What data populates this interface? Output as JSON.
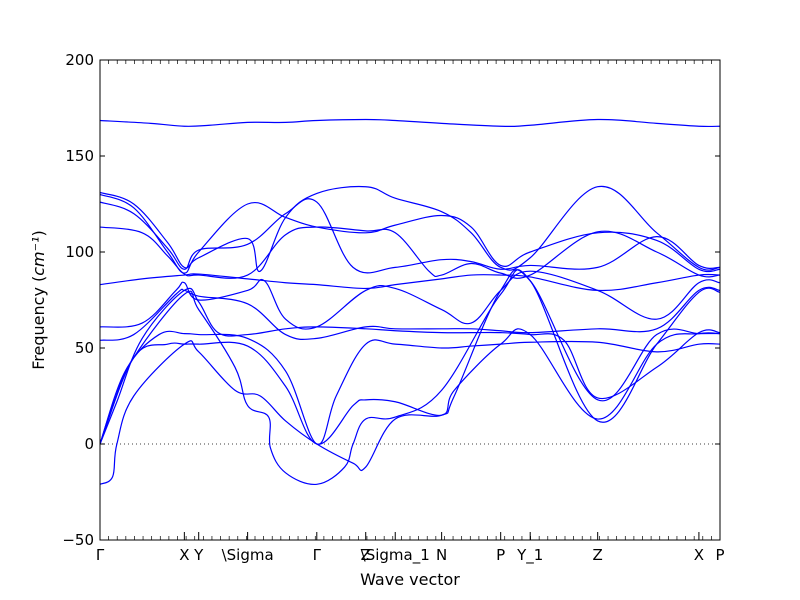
{
  "chart_data": {
    "type": "line",
    "title": "",
    "xlabel": "Wave vector",
    "ylabel_prefix": "Frequency (",
    "ylabel_unit_html": "cm⁻¹",
    "ylabel_suffix": ")",
    "ylim": [
      -50,
      200
    ],
    "xlim": [
      0,
      7.35
    ],
    "yticks": [
      -50,
      0,
      50,
      100,
      150,
      200
    ],
    "ytick_labels": [
      "−50",
      "0",
      "50",
      "100",
      "150",
      "200"
    ],
    "xticks": [
      {
        "x": 0.0,
        "label": "Γ"
      },
      {
        "x": 1.0,
        "label": "X"
      },
      {
        "x": 1.17,
        "label": "Y"
      },
      {
        "x": 1.75,
        "label": "\\Sigma"
      },
      {
        "x": 2.57,
        "label": "Γ"
      },
      {
        "x": 3.15,
        "label": "Z"
      },
      {
        "x": 3.5,
        "label": "\\Sigma_1"
      },
      {
        "x": 4.05,
        "label": "N"
      },
      {
        "x": 4.75,
        "label": "P"
      },
      {
        "x": 5.1,
        "label": "Y_1"
      },
      {
        "x": 5.9,
        "label": "Z"
      },
      {
        "x": 7.1,
        "label": "X"
      },
      {
        "x": 7.35,
        "label": "P"
      }
    ],
    "zero_line": {
      "y": 0,
      "style": "dotted"
    },
    "grid": false,
    "series": [
      {
        "points": [
          [
            0,
            168.5
          ],
          [
            0.6,
            167
          ],
          [
            1.0,
            165.5
          ],
          [
            1.3,
            166
          ],
          [
            1.75,
            167.5
          ],
          [
            2.2,
            167.5
          ],
          [
            2.57,
            168.5
          ],
          [
            3.15,
            169
          ],
          [
            3.5,
            168.5
          ],
          [
            4.05,
            167
          ],
          [
            4.75,
            165.5
          ],
          [
            5.1,
            166
          ],
          [
            5.9,
            169
          ],
          [
            6.6,
            167
          ],
          [
            7.1,
            165.5
          ],
          [
            7.35,
            165.5
          ]
        ]
      },
      {
        "points": [
          [
            0,
            131
          ],
          [
            0.4,
            125
          ],
          [
            0.8,
            105
          ],
          [
            1.0,
            92
          ],
          [
            1.17,
            97
          ],
          [
            1.75,
            107
          ],
          [
            1.9,
            90
          ],
          [
            2.2,
            118
          ],
          [
            2.57,
            130.5
          ],
          [
            3.15,
            134
          ],
          [
            3.5,
            128
          ],
          [
            4.05,
            121
          ],
          [
            4.4,
            110
          ],
          [
            4.75,
            92
          ],
          [
            5.1,
            97
          ],
          [
            5.9,
            134
          ],
          [
            6.6,
            110
          ],
          [
            7.1,
            92
          ],
          [
            7.35,
            92
          ]
        ]
      },
      {
        "points": [
          [
            0,
            130
          ],
          [
            0.4,
            123
          ],
          [
            0.8,
            100
          ],
          [
            1.0,
            89
          ],
          [
            1.17,
            100
          ],
          [
            1.75,
            125
          ],
          [
            2.2,
            118
          ],
          [
            2.57,
            113
          ],
          [
            3.15,
            110
          ],
          [
            3.5,
            114
          ],
          [
            4.05,
            119
          ],
          [
            4.4,
            113
          ],
          [
            4.75,
            93
          ],
          [
            5.1,
            100
          ],
          [
            5.9,
            110
          ],
          [
            6.6,
            106
          ],
          [
            7.1,
            91
          ],
          [
            7.35,
            91
          ]
        ]
      },
      {
        "points": [
          [
            0,
            126
          ],
          [
            0.4,
            120
          ],
          [
            0.8,
            102
          ],
          [
            1.0,
            91
          ],
          [
            1.17,
            101
          ],
          [
            1.75,
            104
          ],
          [
            2.2,
            120
          ],
          [
            2.57,
            126
          ],
          [
            3.0,
            92
          ],
          [
            3.5,
            92
          ],
          [
            4.05,
            96
          ],
          [
            4.4,
            95
          ],
          [
            4.75,
            91
          ],
          [
            5.1,
            93
          ],
          [
            5.9,
            92
          ],
          [
            6.6,
            108
          ],
          [
            7.1,
            93
          ],
          [
            7.35,
            92
          ]
        ]
      },
      {
        "points": [
          [
            0,
            113
          ],
          [
            0.5,
            110
          ],
          [
            0.8,
            98
          ],
          [
            1.0,
            88.5
          ],
          [
            1.17,
            88
          ],
          [
            1.75,
            88
          ],
          [
            2.2,
            109
          ],
          [
            2.57,
            113
          ],
          [
            3.15,
            111
          ],
          [
            3.5,
            110
          ],
          [
            3.9,
            90
          ],
          [
            4.05,
            88
          ],
          [
            4.4,
            94
          ],
          [
            4.75,
            89
          ],
          [
            5.1,
            88
          ],
          [
            5.9,
            110.5
          ],
          [
            6.6,
            100
          ],
          [
            7.1,
            88
          ],
          [
            7.35,
            88
          ]
        ]
      },
      {
        "points": [
          [
            0,
            83
          ],
          [
            0.5,
            86
          ],
          [
            1.0,
            88
          ],
          [
            1.17,
            88.5
          ],
          [
            1.75,
            86
          ],
          [
            2.2,
            84
          ],
          [
            2.57,
            83
          ],
          [
            3.15,
            81
          ],
          [
            3.5,
            83
          ],
          [
            4.05,
            86
          ],
          [
            4.4,
            88
          ],
          [
            4.75,
            88
          ],
          [
            5.1,
            87
          ],
          [
            5.9,
            80
          ],
          [
            6.6,
            84
          ],
          [
            7.1,
            88
          ],
          [
            7.35,
            88
          ]
        ]
      },
      {
        "points": [
          [
            0,
            61
          ],
          [
            0.5,
            63
          ],
          [
            0.9,
            80
          ],
          [
            1.0,
            84
          ],
          [
            1.17,
            75
          ],
          [
            1.75,
            80
          ],
          [
            1.95,
            85
          ],
          [
            2.2,
            65
          ],
          [
            2.57,
            61
          ],
          [
            3.15,
            80
          ],
          [
            3.5,
            81
          ],
          [
            4.05,
            70
          ],
          [
            4.4,
            63
          ],
          [
            4.75,
            80
          ],
          [
            5.1,
            90
          ],
          [
            5.9,
            80
          ],
          [
            6.6,
            65
          ],
          [
            7.1,
            84
          ],
          [
            7.35,
            84
          ]
        ]
      },
      {
        "points": [
          [
            0,
            54
          ],
          [
            0.4,
            57
          ],
          [
            0.9,
            78
          ],
          [
            1.0,
            80
          ],
          [
            1.17,
            77
          ],
          [
            1.75,
            73
          ],
          [
            2.2,
            57
          ],
          [
            2.57,
            55
          ],
          [
            3.15,
            61
          ],
          [
            3.5,
            60
          ],
          [
            4.05,
            60
          ],
          [
            4.4,
            60
          ],
          [
            4.75,
            59
          ],
          [
            5.1,
            58
          ],
          [
            5.9,
            60
          ],
          [
            6.6,
            60
          ],
          [
            7.1,
            80
          ],
          [
            7.35,
            80
          ]
        ]
      },
      {
        "points": [
          [
            0,
            0
          ],
          [
            0.2,
            22
          ],
          [
            0.5,
            55
          ],
          [
            1.0,
            80
          ],
          [
            1.17,
            74
          ],
          [
            1.4,
            58
          ],
          [
            1.75,
            57
          ],
          [
            2.2,
            60
          ],
          [
            2.57,
            61
          ],
          [
            3.15,
            60
          ],
          [
            3.5,
            59
          ],
          [
            4.05,
            58
          ],
          [
            4.4,
            58
          ],
          [
            4.75,
            58
          ],
          [
            5.1,
            57
          ],
          [
            5.5,
            54
          ],
          [
            5.9,
            24
          ],
          [
            6.6,
            40
          ],
          [
            7.1,
            58
          ],
          [
            7.35,
            58
          ]
        ]
      },
      {
        "points": [
          [
            0,
            0
          ],
          [
            0.3,
            38
          ],
          [
            0.7,
            57
          ],
          [
            1.0,
            57.5
          ],
          [
            1.17,
            57
          ],
          [
            1.75,
            55
          ],
          [
            2.2,
            38
          ],
          [
            2.57,
            0
          ],
          [
            2.8,
            25
          ],
          [
            3.15,
            52
          ],
          [
            3.5,
            52
          ],
          [
            4.05,
            50
          ],
          [
            4.4,
            51
          ],
          [
            4.75,
            52
          ],
          [
            5.1,
            53
          ],
          [
            5.9,
            53
          ],
          [
            6.6,
            48
          ],
          [
            7.1,
            52
          ],
          [
            7.35,
            52
          ]
        ]
      },
      {
        "points": [
          [
            0,
            0
          ],
          [
            0.4,
            45
          ],
          [
            0.8,
            52
          ],
          [
            1.0,
            52
          ],
          [
            1.17,
            52
          ],
          [
            1.75,
            51
          ],
          [
            2.2,
            30
          ],
          [
            2.57,
            0
          ],
          [
            3.0,
            20
          ],
          [
            3.15,
            23
          ],
          [
            3.5,
            22
          ],
          [
            4.05,
            15
          ],
          [
            4.2,
            28
          ],
          [
            4.75,
            52
          ],
          [
            5.1,
            57
          ],
          [
            5.9,
            13
          ],
          [
            6.6,
            52
          ],
          [
            7.1,
            57.5
          ],
          [
            7.35,
            57.5
          ]
        ]
      },
      {
        "points": [
          [
            0,
            -21
          ],
          [
            0.15,
            -17
          ],
          [
            0.2,
            0
          ],
          [
            0.4,
            25
          ],
          [
            1.0,
            52
          ],
          [
            1.17,
            48
          ],
          [
            1.6,
            28
          ],
          [
            1.9,
            25
          ],
          [
            2.2,
            12
          ],
          [
            2.57,
            0
          ],
          [
            3.0,
            -10
          ],
          [
            3.15,
            -12
          ],
          [
            3.5,
            13
          ],
          [
            4.05,
            15
          ],
          [
            4.2,
            25
          ],
          [
            4.75,
            80
          ],
          [
            5.1,
            85
          ],
          [
            5.9,
            23
          ],
          [
            6.6,
            57
          ],
          [
            7.1,
            57.5
          ],
          [
            7.35,
            57.5
          ]
        ]
      },
      {
        "points": [
          [
            0,
            0
          ],
          [
            0.15,
            20
          ],
          [
            0.4,
            45
          ],
          [
            1.0,
            78
          ],
          [
            1.17,
            70
          ],
          [
            1.6,
            40
          ],
          [
            1.75,
            20
          ],
          [
            2.0,
            14
          ],
          [
            2.02,
            -2
          ],
          [
            2.2,
            -15
          ],
          [
            2.57,
            -21
          ],
          [
            2.9,
            -12
          ],
          [
            3.0,
            0
          ],
          [
            3.15,
            13
          ],
          [
            3.5,
            14
          ],
          [
            4.05,
            28
          ],
          [
            4.75,
            78
          ],
          [
            5.1,
            85
          ],
          [
            5.9,
            12
          ],
          [
            6.6,
            52
          ],
          [
            7.1,
            79
          ],
          [
            7.35,
            79
          ]
        ]
      }
    ]
  }
}
